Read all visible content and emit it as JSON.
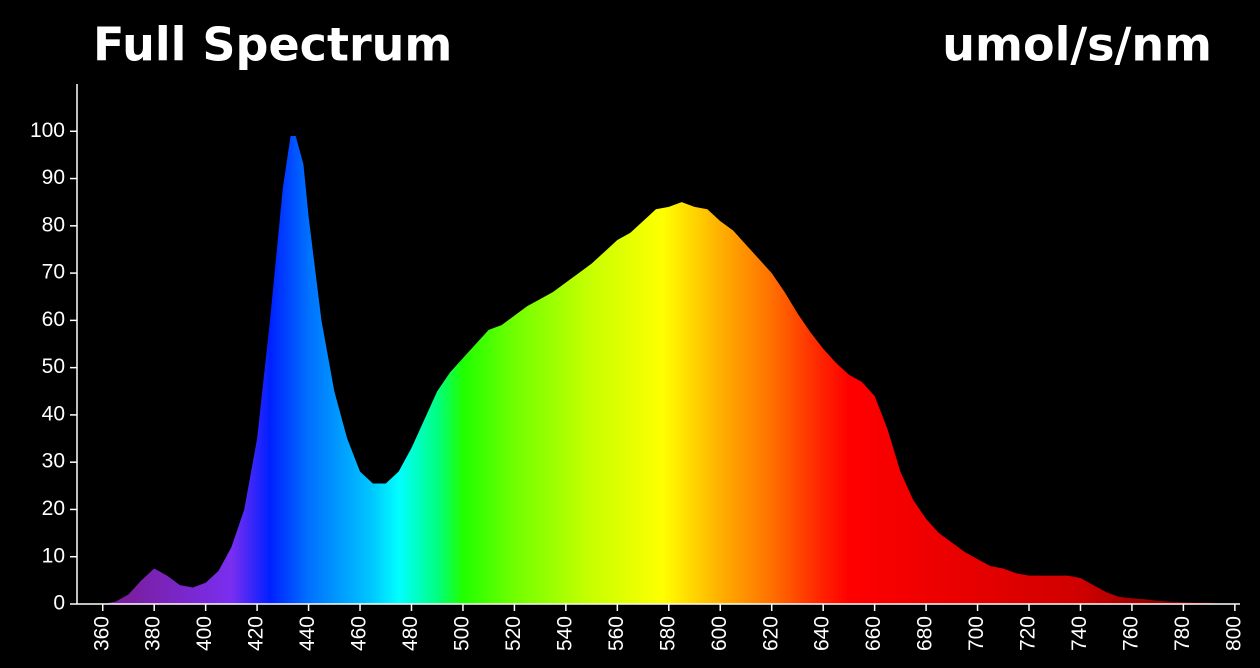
{
  "chart_data": {
    "type": "area",
    "title": "Full Spectrum",
    "unit_label": "umol/s/nm",
    "x": [
      360,
      365,
      370,
      375,
      380,
      385,
      390,
      395,
      400,
      405,
      410,
      415,
      420,
      425,
      430,
      433,
      435,
      438,
      440,
      445,
      450,
      455,
      460,
      465,
      470,
      475,
      480,
      485,
      490,
      495,
      500,
      505,
      510,
      515,
      520,
      525,
      530,
      535,
      540,
      545,
      550,
      555,
      560,
      565,
      570,
      575,
      580,
      585,
      590,
      595,
      600,
      605,
      610,
      615,
      620,
      625,
      630,
      635,
      640,
      645,
      650,
      655,
      660,
      665,
      670,
      675,
      680,
      685,
      690,
      695,
      700,
      705,
      710,
      715,
      720,
      725,
      730,
      735,
      740,
      745,
      750,
      755,
      760,
      765,
      770,
      775,
      780,
      785,
      790,
      795
    ],
    "values": [
      0,
      0.5,
      2,
      5,
      7.5,
      6,
      4,
      3.5,
      4.5,
      7,
      12,
      20,
      35,
      60,
      88,
      99,
      99,
      93,
      82,
      60,
      45,
      35,
      28,
      25.5,
      25.5,
      28,
      33,
      39,
      45,
      49,
      52,
      55,
      58,
      59,
      61,
      63,
      64.5,
      66,
      68,
      70,
      72,
      74.5,
      77,
      78.5,
      81,
      83.5,
      84,
      85,
      84,
      83.5,
      81,
      79,
      76,
      73,
      70,
      66,
      61.5,
      57.5,
      54,
      51,
      48.5,
      47,
      44,
      37,
      28,
      22,
      18,
      15,
      13,
      11,
      9.5,
      8,
      7.5,
      6.5,
      6,
      6,
      6,
      6,
      5.5,
      4,
      2.5,
      1.5,
      1.2,
      1,
      0.7,
      0.5,
      0.4,
      0.3,
      0.3,
      0
    ],
    "xlim": [
      350,
      802
    ],
    "ylim": [
      0,
      110
    ],
    "xticks": [
      360,
      380,
      400,
      420,
      440,
      460,
      480,
      500,
      520,
      540,
      560,
      580,
      600,
      620,
      640,
      660,
      680,
      700,
      720,
      740,
      760,
      780,
      800
    ],
    "yticks": [
      0,
      10,
      20,
      30,
      40,
      50,
      60,
      70,
      80,
      90,
      100
    ]
  }
}
